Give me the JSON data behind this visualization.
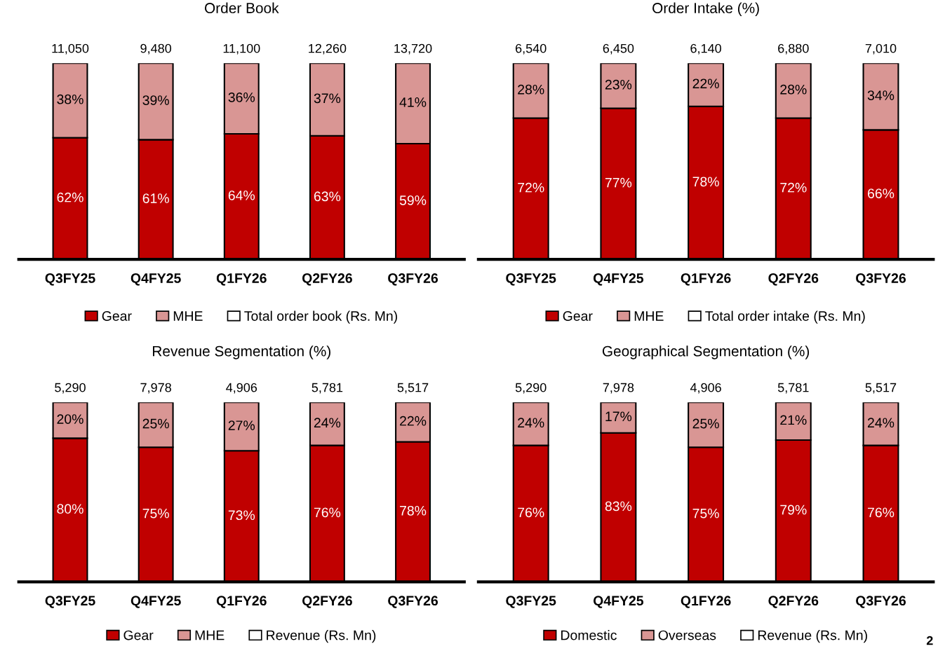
{
  "chart_data": [
    {
      "type": "bar",
      "title": "Order Book",
      "stacked": true,
      "categories": [
        "Q3FY25",
        "Q4FY25",
        "Q1FY26",
        "Q2FY26",
        "Q3FY26"
      ],
      "ylim": [
        0,
        100
      ],
      "tick_labels": "x",
      "legend": "bottom",
      "grid": false,
      "series": [
        {
          "name": "Gear",
          "color": "#c00000",
          "values": [
            62,
            61,
            64,
            63,
            59
          ],
          "value_labels": [
            "62%",
            "61%",
            "64%",
            "63%",
            "59%"
          ]
        },
        {
          "name": "MHE",
          "color": "#d99694",
          "values": [
            38,
            39,
            36,
            37,
            41
          ],
          "value_labels": [
            "38%",
            "39%",
            "36%",
            "37%",
            "41%"
          ]
        },
        {
          "name": "Total order book (Rs. Mn)",
          "color": "#ffffff",
          "values": [
            null,
            null,
            null,
            null,
            null
          ]
        }
      ],
      "annotations": [
        {
          "text": "11,050",
          "x": "Q3FY25",
          "y": 100
        },
        {
          "text": "9,480",
          "x": "Q4FY25",
          "y": 100
        },
        {
          "text": "11,100",
          "x": "Q1FY26",
          "y": 100
        },
        {
          "text": "12,260",
          "x": "Q2FY26",
          "y": 100
        },
        {
          "text": "13,720",
          "x": "Q3FY26",
          "y": 100
        }
      ]
    },
    {
      "type": "bar",
      "title": "Order Intake (%)",
      "stacked": true,
      "categories": [
        "Q3FY25",
        "Q4FY25",
        "Q1FY26",
        "Q2FY26",
        "Q3FY26"
      ],
      "ylim": [
        0,
        100
      ],
      "tick_labels": "x",
      "legend": "bottom",
      "grid": false,
      "series": [
        {
          "name": "Gear",
          "color": "#c00000",
          "values": [
            72,
            77,
            78,
            72,
            66
          ],
          "value_labels": [
            "72%",
            "77%",
            "78%",
            "72%",
            "66%"
          ]
        },
        {
          "name": "MHE",
          "color": "#d99694",
          "values": [
            28,
            23,
            22,
            28,
            34
          ],
          "value_labels": [
            "28%",
            "23%",
            "22%",
            "28%",
            "34%"
          ]
        },
        {
          "name": "Total order intake (Rs. Mn)",
          "color": "#ffffff",
          "values": [
            null,
            null,
            null,
            null,
            null
          ]
        }
      ],
      "annotations": [
        {
          "text": "6,540",
          "x": "Q3FY25",
          "y": 100
        },
        {
          "text": "6,450",
          "x": "Q4FY25",
          "y": 100
        },
        {
          "text": "6,140",
          "x": "Q1FY26",
          "y": 100
        },
        {
          "text": "6,880",
          "x": "Q2FY26",
          "y": 100
        },
        {
          "text": "7,010",
          "x": "Q3FY26",
          "y": 100
        }
      ]
    },
    {
      "type": "bar",
      "title": "Revenue Segmentation (%)",
      "stacked": true,
      "categories": [
        "Q3FY25",
        "Q4FY25",
        "Q1FY26",
        "Q2FY26",
        "Q3FY26"
      ],
      "ylim": [
        0,
        100
      ],
      "tick_labels": "x",
      "legend": "bottom",
      "grid": false,
      "series": [
        {
          "name": "Gear",
          "color": "#c00000",
          "values": [
            80,
            75,
            73,
            76,
            78
          ],
          "value_labels": [
            "80%",
            "75%",
            "73%",
            "76%",
            "78%"
          ]
        },
        {
          "name": "MHE",
          "color": "#d99694",
          "values": [
            20,
            25,
            27,
            24,
            22
          ],
          "value_labels": [
            "20%",
            "25%",
            "27%",
            "24%",
            "22%"
          ]
        },
        {
          "name": "Revenue (Rs. Mn)",
          "color": "#ffffff",
          "values": [
            null,
            null,
            null,
            null,
            null
          ]
        }
      ],
      "annotations": [
        {
          "text": "5,290",
          "x": "Q3FY25",
          "y": 100
        },
        {
          "text": "7,978",
          "x": "Q4FY25",
          "y": 100
        },
        {
          "text": "4,906",
          "x": "Q1FY26",
          "y": 100
        },
        {
          "text": "5,781",
          "x": "Q2FY26",
          "y": 100
        },
        {
          "text": "5,517",
          "x": "Q3FY26",
          "y": 100
        }
      ]
    },
    {
      "type": "bar",
      "title": "Geographical Segmentation (%)",
      "stacked": true,
      "categories": [
        "Q3FY25",
        "Q4FY25",
        "Q1FY26",
        "Q2FY26",
        "Q3FY26"
      ],
      "ylim": [
        0,
        100
      ],
      "tick_labels": "x",
      "legend": "bottom",
      "grid": false,
      "series": [
        {
          "name": "Domestic",
          "color": "#c00000",
          "values": [
            76,
            83,
            75,
            79,
            76
          ],
          "value_labels": [
            "76%",
            "83%",
            "75%",
            "79%",
            "76%"
          ]
        },
        {
          "name": "Overseas",
          "color": "#d99694",
          "values": [
            24,
            17,
            25,
            21,
            24
          ],
          "value_labels": [
            "24%",
            "17%",
            "25%",
            "21%",
            "24%"
          ]
        },
        {
          "name": "Revenue (Rs. Mn)",
          "color": "#ffffff",
          "values": [
            null,
            null,
            null,
            null,
            null
          ]
        }
      ],
      "annotations": [
        {
          "text": "5,290",
          "x": "Q3FY25",
          "y": 100
        },
        {
          "text": "7,978",
          "x": "Q4FY25",
          "y": 100
        },
        {
          "text": "4,906",
          "x": "Q1FY26",
          "y": 100
        },
        {
          "text": "5,781",
          "x": "Q2FY26",
          "y": 100
        },
        {
          "text": "5,517",
          "x": "Q3FY26",
          "y": 100
        },
        "2"
      ]
    }
  ]
}
